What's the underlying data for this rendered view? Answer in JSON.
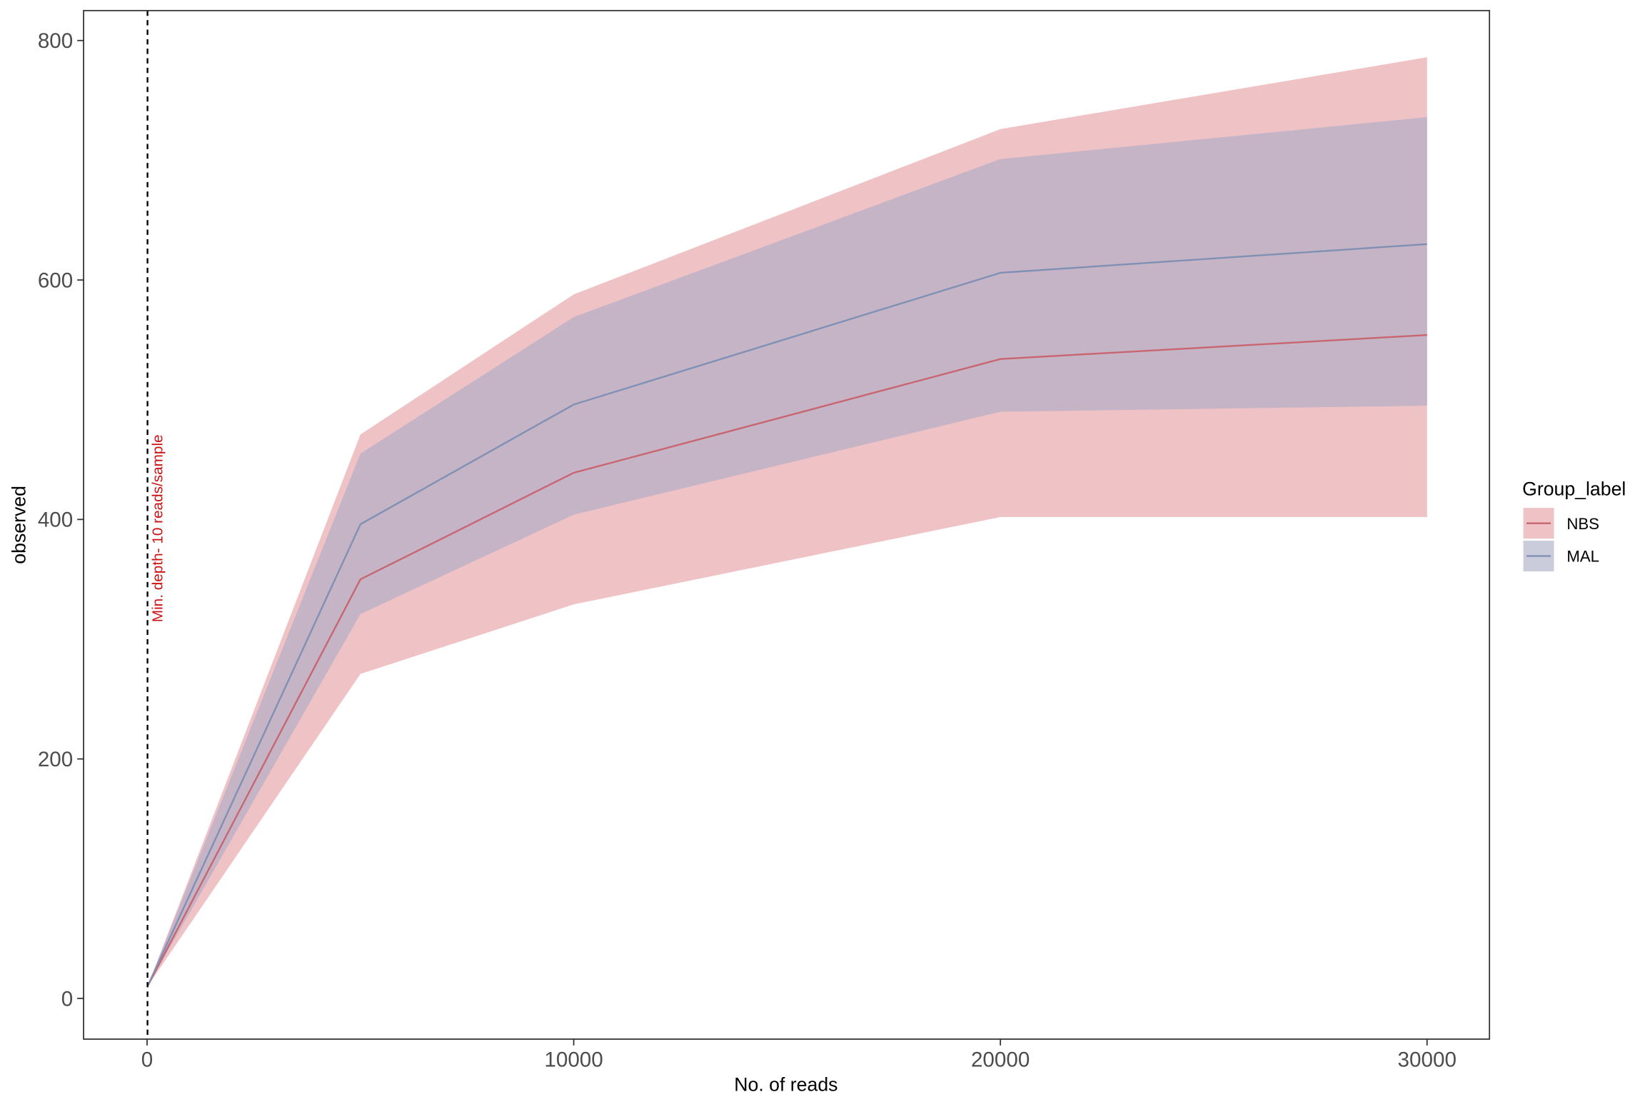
{
  "chart_data": {
    "type": "line",
    "x_label": "No. of reads",
    "y_label": "observed",
    "x": [
      10,
      5000,
      10000,
      20000,
      30000
    ],
    "series": [
      {
        "name": "NBS",
        "color": "#c96570",
        "fill": "#e49a9e",
        "values": [
          10,
          350,
          439,
          534,
          554
        ],
        "lower": [
          10,
          271,
          329,
          402,
          402
        ],
        "upper": [
          10,
          471,
          588,
          726,
          786
        ]
      },
      {
        "name": "MAL",
        "color": "#8090b5",
        "fill": "#a7aac4",
        "values": [
          10,
          396,
          496,
          606,
          630
        ],
        "lower": [
          10,
          321,
          404,
          490,
          495
        ],
        "upper": [
          10,
          455,
          569,
          701,
          736
        ]
      }
    ],
    "xlim": [
      -1488,
      31463
    ],
    "ylim": [
      -34,
      825
    ],
    "xticks": [
      0,
      10000,
      20000,
      30000
    ],
    "yticks": [
      0,
      200,
      400,
      600,
      800
    ],
    "vline": 10,
    "vline_label": "Min. depth- 10 reads/sample",
    "vline_label_color": "#cc1111",
    "legend_title": "Group_label",
    "legend_position": "right"
  }
}
